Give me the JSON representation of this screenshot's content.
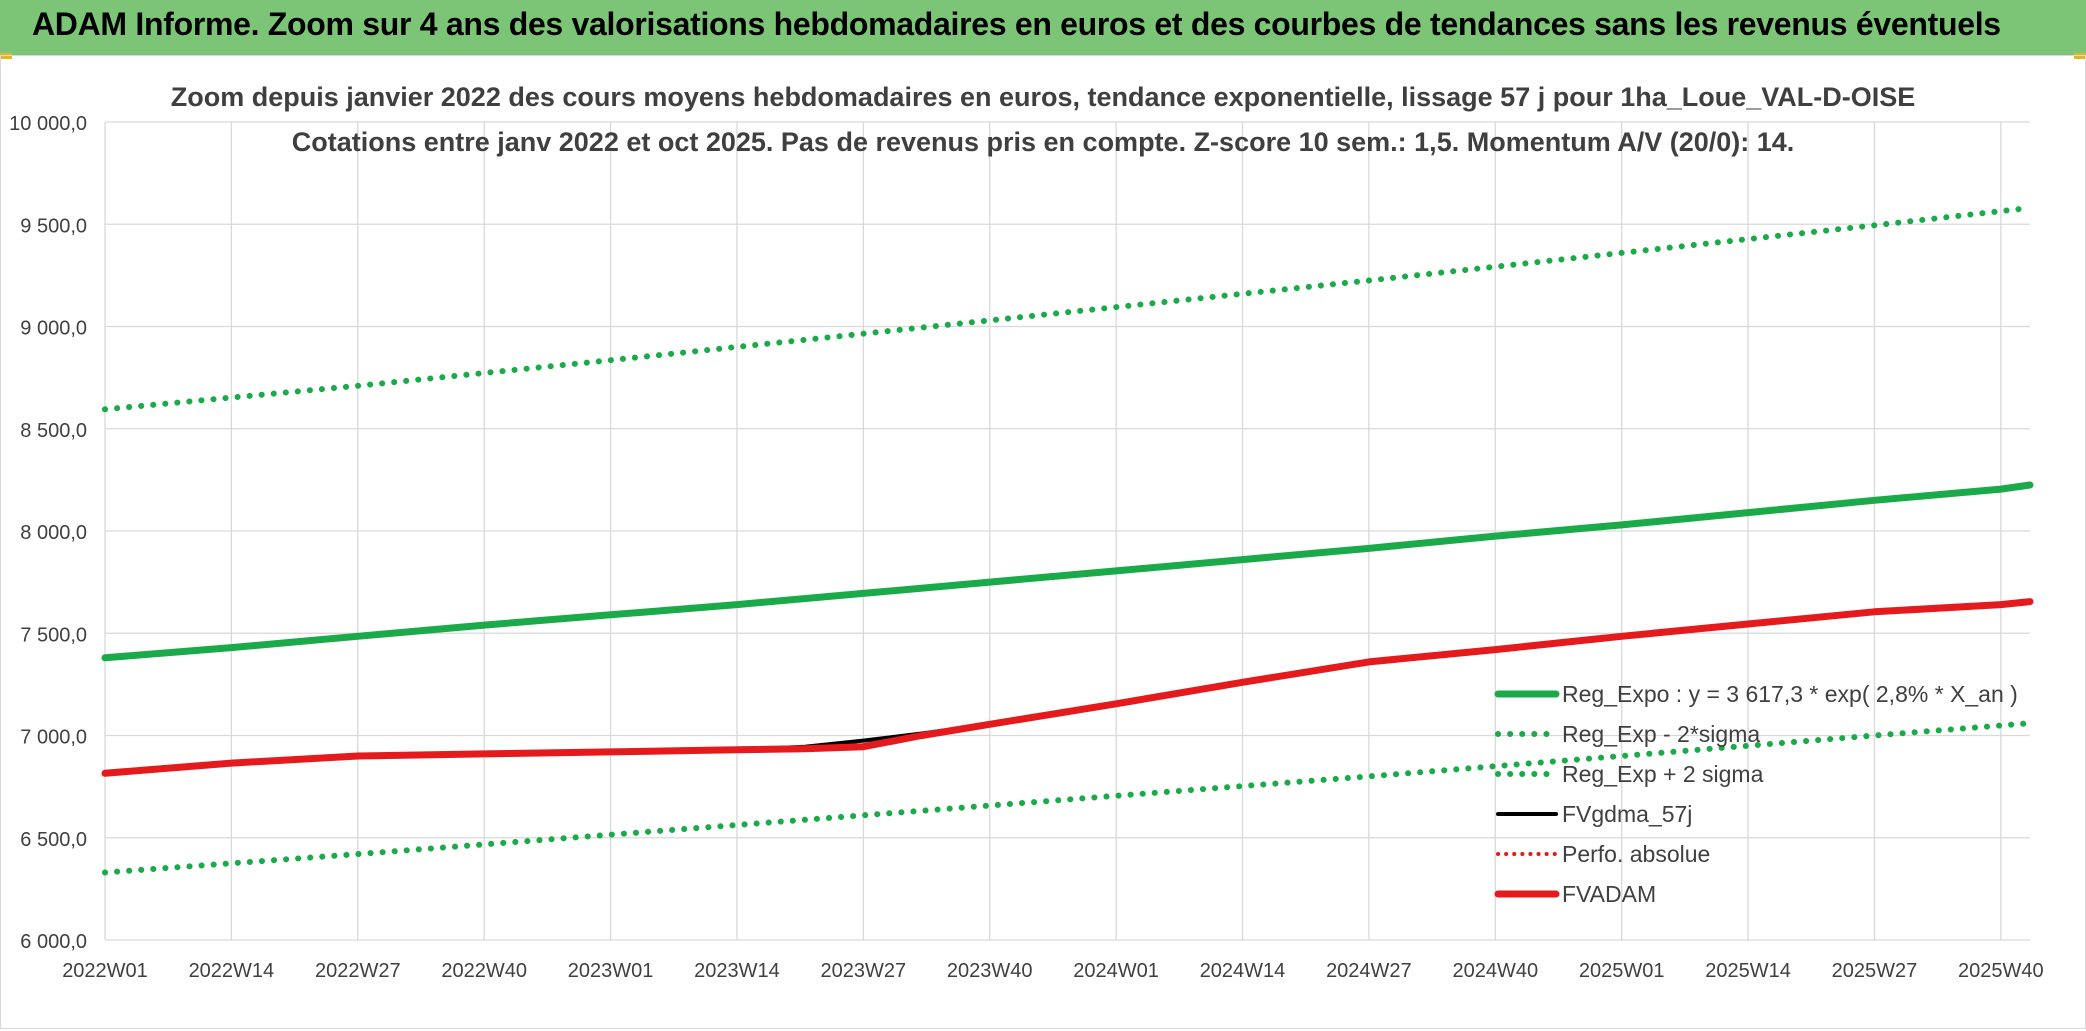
{
  "banner": {
    "title": "ADAM Informe. Zoom sur 4 ans des valorisations hebdomadaires en euros et des courbes de tendances sans les revenus éventuels"
  },
  "chart_data": {
    "type": "line",
    "title": "Zoom depuis janvier 2022 des cours moyens hebdomadaires en euros, tendance exponentielle, lissage 57 j pour 1ha_Loue_VAL-D-OISE",
    "subtitle": "Cotations entre janv 2022 et oct 2025. Pas de revenus pris en compte. Z-score 10 sem.: 1,5. Momentum A/V (20/0): 14.",
    "x_tick_labels": [
      "2022W01",
      "2022W14",
      "2022W27",
      "2022W40",
      "2023W01",
      "2023W14",
      "2023W27",
      "2023W40",
      "2024W01",
      "2024W14",
      "2024W27",
      "2024W40",
      "2025W01",
      "2025W14",
      "2025W27",
      "2025W40"
    ],
    "y_tick_labels": [
      "10 000,0",
      "9 500,0",
      "9 000,0",
      "8 500,0",
      "8 000,0",
      "7 500,0",
      "7 000,0",
      "6 500,0",
      "6 000,0"
    ],
    "ylim": [
      6000,
      10000
    ],
    "grid": true,
    "legend_position": "right",
    "series": [
      {
        "name": "Reg_Expo : y = 3 617,3 * exp( 2,8% *  X_an )",
        "color": "#1aaa4a",
        "style": "solid-thick",
        "x": [
          "2022W01",
          "2022W14",
          "2022W27",
          "2022W40",
          "2023W01",
          "2023W14",
          "2023W27",
          "2023W40",
          "2024W01",
          "2024W14",
          "2024W27",
          "2024W40",
          "2025W01",
          "2025W14",
          "2025W27",
          "2025W40",
          "2025W43"
        ],
        "values": [
          7380,
          7430,
          7485,
          7540,
          7590,
          7640,
          7695,
          7750,
          7805,
          7860,
          7915,
          7975,
          8030,
          8090,
          8150,
          8205,
          8225
        ]
      },
      {
        "name": "Reg_Exp - 2*sigma",
        "color": "#1aaa4a",
        "style": "dotted",
        "x": [
          "2022W01",
          "2022W27",
          "2023W01",
          "2023W27",
          "2024W01",
          "2024W27",
          "2025W01",
          "2025W27",
          "2025W43"
        ],
        "values": [
          6330,
          6420,
          6515,
          6610,
          6705,
          6800,
          6900,
          7000,
          7060
        ]
      },
      {
        "name": "Reg_Exp + 2 sigma",
        "color": "#1aaa4a",
        "style": "dotted",
        "x": [
          "2022W01",
          "2022W27",
          "2023W01",
          "2023W27",
          "2024W01",
          "2024W27",
          "2025W01",
          "2025W27",
          "2025W43"
        ],
        "values": [
          8595,
          8710,
          8835,
          8965,
          9095,
          9225,
          9360,
          9495,
          9580
        ]
      },
      {
        "name": "FVgdma_57j",
        "color": "#000000",
        "style": "solid",
        "x": [
          "2022W01",
          "2022W14",
          "2022W27",
          "2022W40",
          "2023W01",
          "2023W14",
          "2023W21",
          "2023W27",
          "2023W33",
          "2023W40",
          "2024W01",
          "2024W14",
          "2024W27",
          "2024W40",
          "2025W01",
          "2025W14",
          "2025W27",
          "2025W40",
          "2025W43"
        ],
        "values": [
          6815,
          6865,
          6900,
          6910,
          6920,
          6930,
          6945,
          6975,
          7010,
          7055,
          7155,
          7260,
          7365,
          7420,
          7485,
          7545,
          7605,
          7640,
          7655
        ]
      },
      {
        "name": "Perfo. absolue",
        "color": "#e41a1c",
        "style": "dotted-red",
        "x": [],
        "values": []
      },
      {
        "name": "FVADAM",
        "color": "#e41a1c",
        "style": "solid-thick",
        "x": [
          "2022W01",
          "2022W14",
          "2022W27",
          "2022W40",
          "2023W01",
          "2023W14",
          "2023W21",
          "2023W27",
          "2023W33",
          "2023W40",
          "2024W01",
          "2024W14",
          "2024W27",
          "2024W40",
          "2025W01",
          "2025W14",
          "2025W27",
          "2025W40",
          "2025W43"
        ],
        "values": [
          6815,
          6865,
          6900,
          6910,
          6920,
          6930,
          6935,
          6945,
          7000,
          7055,
          7155,
          7260,
          7360,
          7420,
          7485,
          7545,
          7605,
          7640,
          7655
        ]
      }
    ]
  }
}
